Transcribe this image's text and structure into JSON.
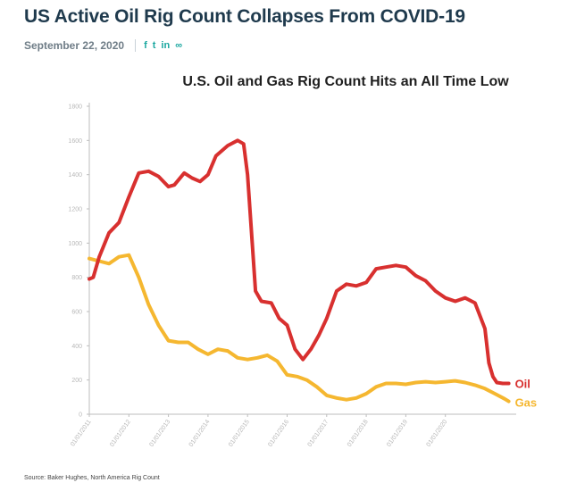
{
  "article": {
    "headline": "US Active Oil Rig Count Collapses From COVID-19",
    "date": "September 22, 2020",
    "share_icons": [
      "facebook-icon",
      "twitter-icon",
      "linkedin-icon",
      "link-icon"
    ],
    "share_glyphs": [
      "f",
      "t",
      "in",
      "∞"
    ],
    "source": "Source: Baker Hughes, North America Rig Count"
  },
  "colors": {
    "oil": "#d8302f",
    "gas": "#f5b730",
    "title": "#1e1e1e",
    "accent": "#1aa7a0"
  },
  "chart_data": {
    "type": "line",
    "title": "U.S. Oil and Gas Rig Count Hits an All Time Low",
    "ylim": [
      0,
      1800
    ],
    "y_ticks": [
      0,
      200,
      400,
      600,
      800,
      1000,
      1200,
      1400,
      1600,
      1800
    ],
    "xlim": [
      2010.0,
      2020.7
    ],
    "x_ticks": [
      {
        "value": 2010,
        "label": "01/01/2011"
      },
      {
        "value": 2011,
        "label": "01/01/2012"
      },
      {
        "value": 2012,
        "label": "01/01/2013"
      },
      {
        "value": 2013,
        "label": "01/01/2014"
      },
      {
        "value": 2014,
        "label": "01/01/2015"
      },
      {
        "value": 2015,
        "label": "01/01/2016"
      },
      {
        "value": 2016,
        "label": "01/01/2017"
      },
      {
        "value": 2017,
        "label": "01/01/2018"
      },
      {
        "value": 2018,
        "label": "01/01/2019"
      },
      {
        "value": 2019,
        "label": "01/01/2020"
      }
    ],
    "series": [
      {
        "name": "Oil",
        "x": [
          2010.0,
          2010.1,
          2010.25,
          2010.5,
          2010.75,
          2011.0,
          2011.25,
          2011.5,
          2011.75,
          2012.0,
          2012.15,
          2012.4,
          2012.6,
          2012.8,
          2013.0,
          2013.2,
          2013.5,
          2013.75,
          2013.9,
          2014.0,
          2014.2,
          2014.35,
          2014.6,
          2014.8,
          2015.0,
          2015.2,
          2015.4,
          2015.6,
          2015.8,
          2016.0,
          2016.25,
          2016.5,
          2016.75,
          2017.0,
          2017.25,
          2017.5,
          2017.75,
          2018.0,
          2018.25,
          2018.5,
          2018.75,
          2019.0,
          2019.25,
          2019.5,
          2019.75,
          2020.0,
          2020.1,
          2020.2,
          2020.3,
          2020.45,
          2020.6
        ],
        "values": [
          790,
          800,
          920,
          1060,
          1120,
          1270,
          1410,
          1420,
          1390,
          1330,
          1340,
          1410,
          1380,
          1360,
          1400,
          1510,
          1570,
          1600,
          1580,
          1400,
          720,
          660,
          650,
          560,
          520,
          380,
          320,
          380,
          460,
          560,
          720,
          760,
          750,
          770,
          850,
          860,
          870,
          860,
          810,
          780,
          720,
          680,
          660,
          680,
          650,
          500,
          300,
          220,
          185,
          180,
          180
        ]
      },
      {
        "name": "Gas",
        "x": [
          2010.0,
          2010.25,
          2010.5,
          2010.75,
          2011.0,
          2011.25,
          2011.5,
          2011.75,
          2012.0,
          2012.25,
          2012.5,
          2012.75,
          2013.0,
          2013.25,
          2013.5,
          2013.75,
          2014.0,
          2014.25,
          2014.5,
          2014.75,
          2015.0,
          2015.25,
          2015.5,
          2015.75,
          2016.0,
          2016.25,
          2016.5,
          2016.75,
          2017.0,
          2017.25,
          2017.5,
          2017.75,
          2018.0,
          2018.25,
          2018.5,
          2018.75,
          2019.0,
          2019.25,
          2019.5,
          2019.75,
          2020.0,
          2020.25,
          2020.5,
          2020.6
        ],
        "values": [
          910,
          895,
          880,
          920,
          930,
          800,
          640,
          520,
          430,
          420,
          420,
          380,
          350,
          380,
          370,
          330,
          320,
          330,
          345,
          310,
          230,
          220,
          200,
          160,
          110,
          95,
          85,
          95,
          120,
          160,
          180,
          180,
          175,
          185,
          190,
          185,
          190,
          195,
          185,
          170,
          150,
          120,
          90,
          75
        ]
      }
    ]
  }
}
